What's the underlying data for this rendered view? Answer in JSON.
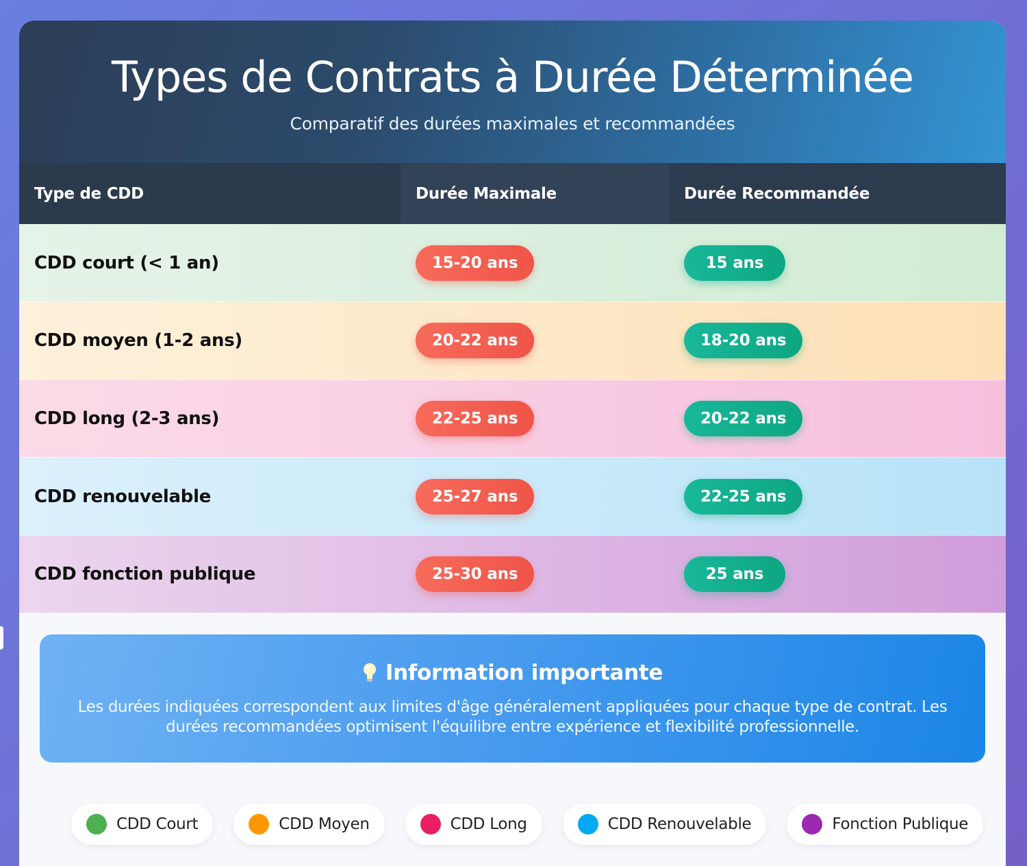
{
  "header": {
    "title": "Types de Contrats à Durée Déterminée",
    "subtitle": "Comparatif des durées maximales et recommandées"
  },
  "table": {
    "columns": [
      "Type de CDD",
      "Durée Maximale",
      "Durée Recommandée"
    ],
    "rows": [
      {
        "type": "CDD court (< 1 an)",
        "max": "15-20 ans",
        "recommended": "15 ans"
      },
      {
        "type": "CDD moyen (1-2 ans)",
        "max": "20-22 ans",
        "recommended": "18-20 ans"
      },
      {
        "type": "CDD long (2-3 ans)",
        "max": "22-25 ans",
        "recommended": "20-22 ans"
      },
      {
        "type": "CDD renouvelable",
        "max": "25-27 ans",
        "recommended": "22-25 ans"
      },
      {
        "type": "CDD fonction publique",
        "max": "25-30 ans",
        "recommended": "25 ans"
      }
    ]
  },
  "info": {
    "icon": "lightbulb-icon",
    "title": "Information importante",
    "text": "Les durées indiquées correspondent aux limites d'âge généralement appliquées pour chaque type de contrat. Les durées recommandées optimisent l'équilibre entre expérience et flexibilité professionnelle."
  },
  "legend": [
    {
      "label": "CDD Court",
      "color": "#4caf50"
    },
    {
      "label": "CDD Moyen",
      "color": "#ff9800"
    },
    {
      "label": "CDD Long",
      "color": "#e91e63"
    },
    {
      "label": "CDD Renouvelable",
      "color": "#03a9f4"
    },
    {
      "label": "Fonction Publique",
      "color": "#9c27b0"
    }
  ],
  "colors": {
    "max_pill": "#ef5448",
    "recommended_pill": "#0ea682",
    "table_header": "#2f3e52"
  }
}
